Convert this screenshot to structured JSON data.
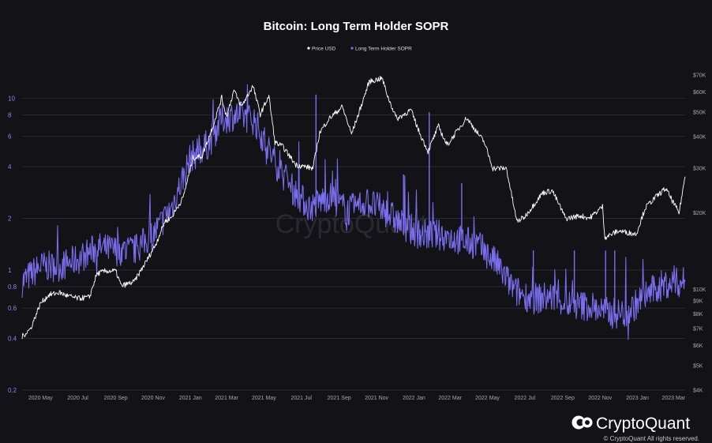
{
  "chart_data": {
    "type": "line",
    "title": "Bitcoin: Long Term Holder SOPR",
    "legend": [
      {
        "label": "Price USD",
        "color": "#ffffff"
      },
      {
        "label": "Long Term Holder SOPR",
        "color": "#7b6ff0"
      }
    ],
    "legend_position": "top-center",
    "x_ticks": [
      "2020 May",
      "2020 Jul",
      "2020 Sep",
      "2020 Nov",
      "2021 Jan",
      "2021 Mar",
      "2021 May",
      "2021 Jul",
      "2021 Sep",
      "2021 Nov",
      "2022 Jan",
      "2022 Mar",
      "2022 May",
      "2022 Jul",
      "2022 Sep",
      "2022 Nov",
      "2023 Jan",
      "2023 Mar"
    ],
    "x_range": [
      "2020-04-01",
      "2023-03-20"
    ],
    "y_left": {
      "scale": "log",
      "range": [
        0.2,
        16
      ],
      "ticks": [
        0.2,
        0.4,
        0.6,
        0.8,
        1,
        2,
        4,
        6,
        8,
        10
      ],
      "tick_labels": [
        "0.2",
        "0.4",
        "0.6",
        "0.8",
        "1",
        "2",
        "4",
        "6",
        "8",
        "10"
      ],
      "color": "#7b6ff0"
    },
    "y_right": {
      "scale": "log",
      "range": [
        4000,
        78000
      ],
      "ticks": [
        4000,
        5000,
        6000,
        7000,
        8000,
        9000,
        10000,
        20000,
        30000,
        40000,
        50000,
        60000,
        70000
      ],
      "tick_labels": [
        "$4K",
        "$5K",
        "$6K",
        "$7K",
        "$8K",
        "$9K",
        "$10K",
        "$20K",
        "$30K",
        "$40K",
        "$50K",
        "$60K",
        "$70K"
      ]
    },
    "gridlines": "horizontal",
    "series": [
      {
        "name": "Price USD",
        "axis": "right",
        "color": "#ffffff",
        "points": [
          [
            "2020-04-01",
            6500
          ],
          [
            "2020-04-15",
            7000
          ],
          [
            "2020-05-01",
            8800
          ],
          [
            "2020-05-15",
            9500
          ],
          [
            "2020-06-01",
            9700
          ],
          [
            "2020-06-15",
            9400
          ],
          [
            "2020-07-01",
            9200
          ],
          [
            "2020-07-20",
            9300
          ],
          [
            "2020-08-01",
            11500
          ],
          [
            "2020-08-15",
            11800
          ],
          [
            "2020-09-01",
            11800
          ],
          [
            "2020-09-10",
            10300
          ],
          [
            "2020-10-01",
            10700
          ],
          [
            "2020-10-21",
            12900
          ],
          [
            "2020-11-05",
            15000
          ],
          [
            "2020-11-20",
            18500
          ],
          [
            "2020-12-01",
            19200
          ],
          [
            "2020-12-20",
            23000
          ],
          [
            "2021-01-05",
            33000
          ],
          [
            "2021-01-20",
            33500
          ],
          [
            "2021-02-08",
            45000
          ],
          [
            "2021-02-21",
            57000
          ],
          [
            "2021-03-01",
            48000
          ],
          [
            "2021-03-13",
            61000
          ],
          [
            "2021-03-25",
            52500
          ],
          [
            "2021-04-13",
            63500
          ],
          [
            "2021-04-25",
            49000
          ],
          [
            "2021-05-09",
            58000
          ],
          [
            "2021-05-19",
            38000
          ],
          [
            "2021-06-01",
            36500
          ],
          [
            "2021-06-22",
            31000
          ],
          [
            "2021-07-20",
            30000
          ],
          [
            "2021-07-31",
            41500
          ],
          [
            "2021-08-15",
            47000
          ],
          [
            "2021-09-06",
            52500
          ],
          [
            "2021-09-21",
            41000
          ],
          [
            "2021-10-01",
            48000
          ],
          [
            "2021-10-20",
            66000
          ],
          [
            "2021-11-10",
            68000
          ],
          [
            "2021-11-20",
            57000
          ],
          [
            "2021-12-04",
            47000
          ],
          [
            "2021-12-27",
            51000
          ],
          [
            "2022-01-10",
            41500
          ],
          [
            "2022-01-24",
            35000
          ],
          [
            "2022-02-10",
            44000
          ],
          [
            "2022-02-24",
            37000
          ],
          [
            "2022-03-28",
            47500
          ],
          [
            "2022-04-26",
            38000
          ],
          [
            "2022-05-10",
            30000
          ],
          [
            "2022-06-01",
            30000
          ],
          [
            "2022-06-18",
            18500
          ],
          [
            "2022-07-01",
            19300
          ],
          [
            "2022-07-30",
            24000
          ],
          [
            "2022-08-15",
            24500
          ],
          [
            "2022-09-06",
            19000
          ],
          [
            "2022-09-30",
            19500
          ],
          [
            "2022-10-15",
            19100
          ],
          [
            "2022-11-05",
            21200
          ],
          [
            "2022-11-09",
            16000
          ],
          [
            "2022-12-01",
            17000
          ],
          [
            "2022-12-30",
            16500
          ],
          [
            "2023-01-14",
            21000
          ],
          [
            "2023-01-30",
            23000
          ],
          [
            "2023-02-16",
            25000
          ],
          [
            "2023-03-10",
            20000
          ],
          [
            "2023-03-20",
            28000
          ]
        ]
      },
      {
        "name": "Long Term Holder SOPR",
        "axis": "left",
        "color": "#7b6ff0",
        "points": [
          [
            "2020-04-01",
            0.85
          ],
          [
            "2020-05-01",
            1.05
          ],
          [
            "2020-06-01",
            1.05
          ],
          [
            "2020-07-01",
            1.15
          ],
          [
            "2020-08-01",
            1.35
          ],
          [
            "2020-09-01",
            1.3
          ],
          [
            "2020-10-01",
            1.3
          ],
          [
            "2020-11-01",
            1.6
          ],
          [
            "2020-12-01",
            2.3
          ],
          [
            "2021-01-01",
            4.5
          ],
          [
            "2021-02-01",
            5.5
          ],
          [
            "2021-02-20",
            7.5
          ],
          [
            "2021-03-15",
            8.0
          ],
          [
            "2021-04-15",
            7.5
          ],
          [
            "2021-05-15",
            4.5
          ],
          [
            "2021-06-15",
            3.0
          ],
          [
            "2021-07-15",
            2.3
          ],
          [
            "2021-08-15",
            2.7
          ],
          [
            "2021-09-15",
            2.2
          ],
          [
            "2021-10-15",
            2.5
          ],
          [
            "2021-11-15",
            2.2
          ],
          [
            "2021-12-15",
            1.8
          ],
          [
            "2022-01-15",
            1.6
          ],
          [
            "2022-02-15",
            1.6
          ],
          [
            "2022-03-15",
            1.5
          ],
          [
            "2022-04-15",
            1.4
          ],
          [
            "2022-05-15",
            1.1
          ],
          [
            "2022-06-15",
            0.75
          ],
          [
            "2022-07-15",
            0.68
          ],
          [
            "2022-08-15",
            0.7
          ],
          [
            "2022-09-15",
            0.62
          ],
          [
            "2022-10-15",
            0.62
          ],
          [
            "2022-11-15",
            0.56
          ],
          [
            "2022-12-15",
            0.56
          ],
          [
            "2023-01-15",
            0.72
          ],
          [
            "2023-02-15",
            0.83
          ],
          [
            "2023-03-20",
            0.85
          ]
        ],
        "spikes": [
          [
            "2021-07-25",
            10.5
          ],
          [
            "2022-01-26",
            8.3
          ],
          [
            "2021-12-15",
            3.6
          ],
          [
            "2022-03-20",
            3.2
          ],
          [
            "2022-07-15",
            1.3
          ],
          [
            "2022-09-20",
            1.3
          ],
          [
            "2022-11-10",
            1.3
          ],
          [
            "2022-11-25",
            1.3
          ]
        ]
      }
    ]
  },
  "watermark": "CryptoQuant",
  "brand": {
    "logo_text": "CryptoQuant",
    "copyright": "© CryptoQuant All rights reserved."
  }
}
